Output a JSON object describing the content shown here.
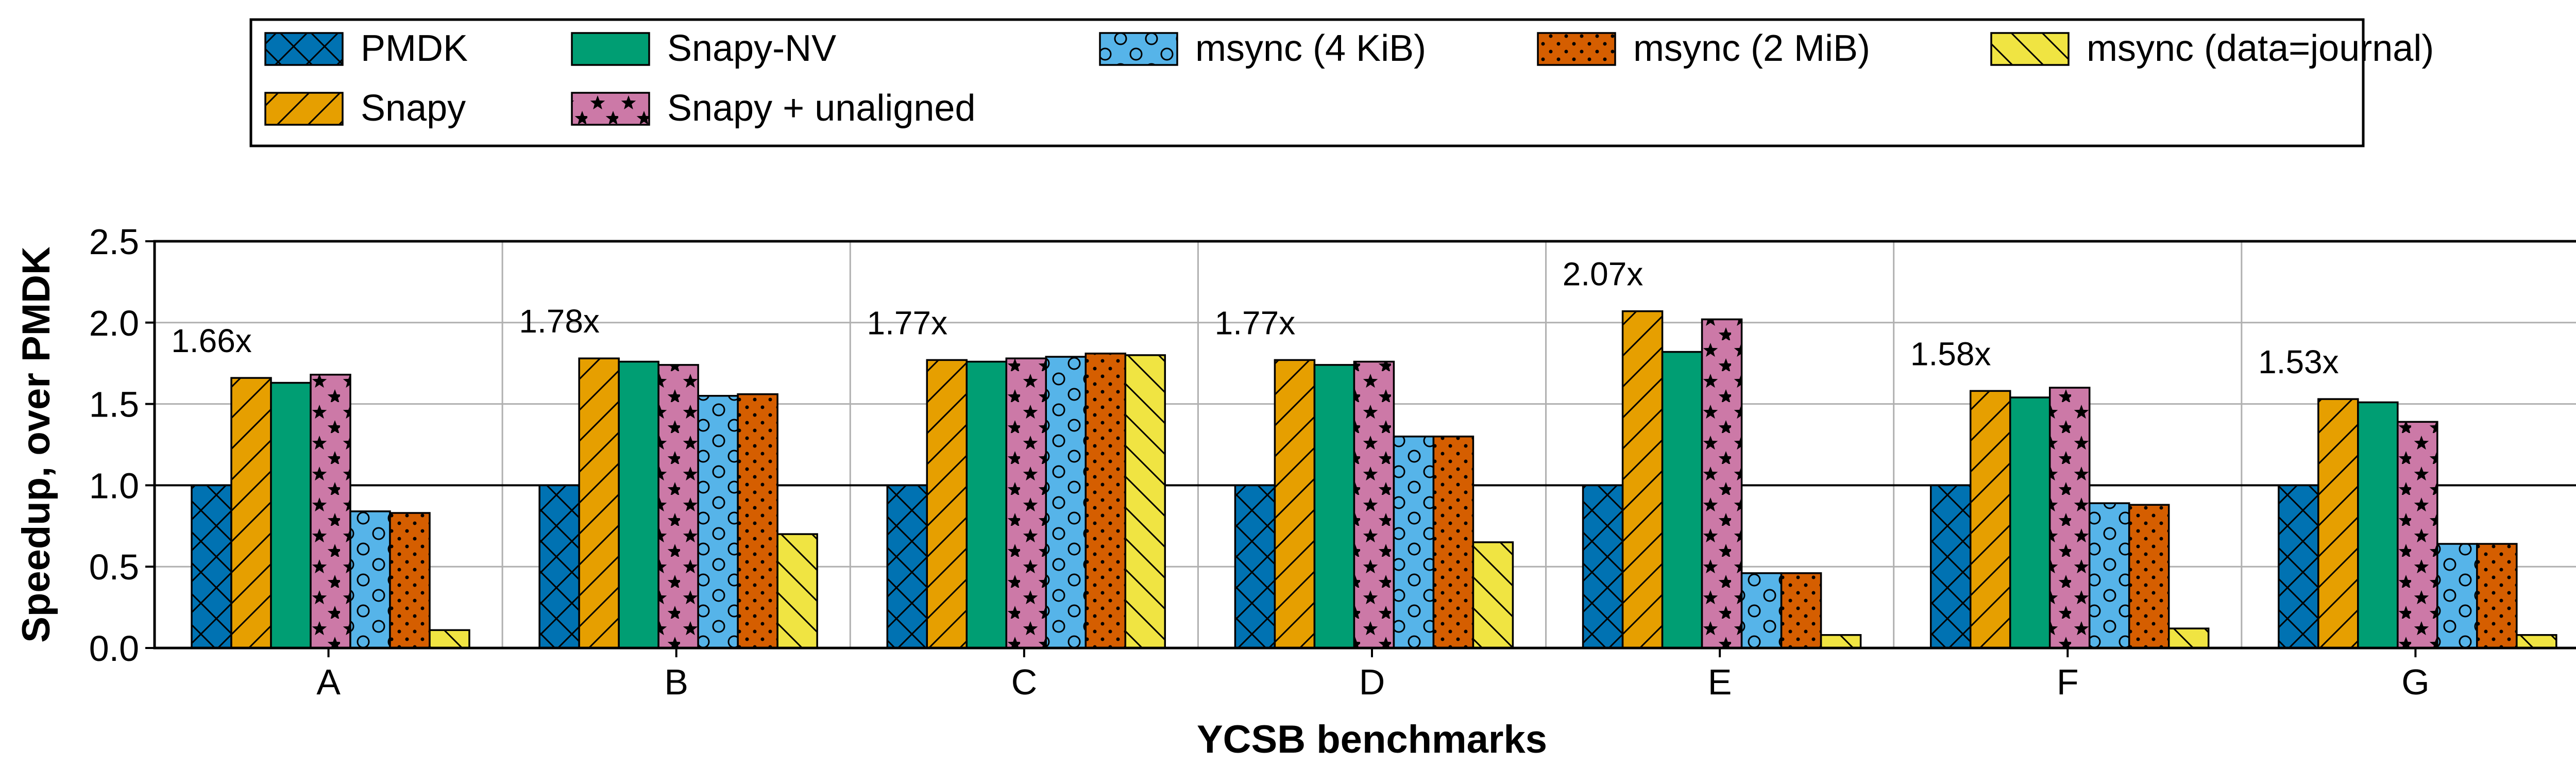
{
  "chart_data": {
    "type": "bar",
    "xlabel": "YCSB benchmarks",
    "ylabel": "Speedup, over PMDK",
    "ylim": [
      0,
      2.5
    ],
    "yticks": [
      "0.0",
      "0.5",
      "1.0",
      "1.5",
      "2.0",
      "2.5"
    ],
    "grid": true,
    "reference_line": 1.0,
    "legend_position": "top",
    "categories": [
      "A",
      "B",
      "C",
      "D",
      "E",
      "F",
      "G"
    ],
    "series": [
      {
        "name": "PMDK",
        "color": "#0072b2",
        "pattern": "crosshatch",
        "values": [
          1.0,
          1.0,
          1.0,
          1.0,
          1.0,
          1.0,
          1.0
        ]
      },
      {
        "name": "Snapy",
        "color": "#e69f00",
        "pattern": "slash",
        "values": [
          1.66,
          1.78,
          1.77,
          1.77,
          2.07,
          1.58,
          1.53
        ]
      },
      {
        "name": "Snapy-NV",
        "color": "#009e73",
        "pattern": "none",
        "values": [
          1.63,
          1.76,
          1.76,
          1.74,
          1.82,
          1.54,
          1.51
        ]
      },
      {
        "name": "Snapy + unaligned",
        "color": "#cc79a7",
        "pattern": "stars",
        "values": [
          1.68,
          1.74,
          1.78,
          1.76,
          2.02,
          1.6,
          1.39
        ]
      },
      {
        "name": "msync (4 KiB)",
        "color": "#56b4e9",
        "pattern": "circles",
        "values": [
          0.84,
          1.55,
          1.79,
          1.3,
          0.46,
          0.89,
          0.64
        ]
      },
      {
        "name": "msync (2 MiB)",
        "color": "#d55e00",
        "pattern": "dots",
        "values": [
          0.83,
          1.56,
          1.81,
          1.3,
          0.46,
          0.88,
          0.64
        ]
      },
      {
        "name": "msync (data=journal)",
        "color": "#f0e442",
        "pattern": "backslash",
        "values": [
          0.11,
          0.7,
          1.8,
          0.65,
          0.08,
          0.12,
          0.08
        ]
      }
    ],
    "annotations": [
      "1.66x",
      "1.78x",
      "1.77x",
      "1.77x",
      "2.07x",
      "1.58x",
      "1.53x"
    ]
  }
}
